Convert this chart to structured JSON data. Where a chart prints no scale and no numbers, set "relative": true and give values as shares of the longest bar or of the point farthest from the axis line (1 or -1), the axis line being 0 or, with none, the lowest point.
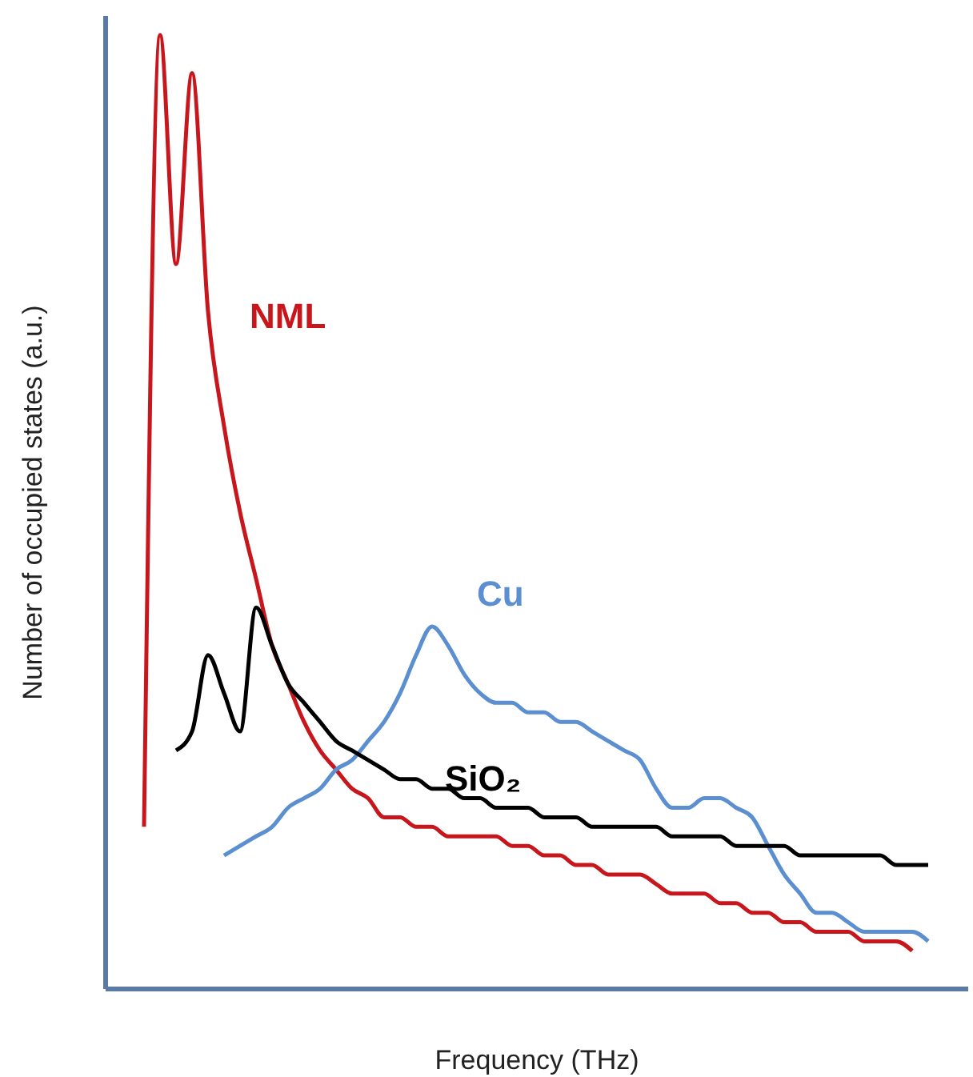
{
  "chart_data": {
    "type": "line",
    "relative": true,
    "xlabel": "Frequency (THz)",
    "ylabel": "Number of occupied states (a.u.)",
    "marker": "none",
    "line_style": "solid",
    "categories": [
      null,
      null,
      null,
      null,
      null,
      null,
      null,
      null,
      null,
      null,
      null,
      null,
      null,
      null,
      null,
      null,
      null,
      null,
      null,
      null,
      null,
      null,
      null,
      null,
      null,
      null,
      null,
      null,
      null,
      null,
      null,
      null,
      null,
      null,
      null,
      null,
      null,
      null,
      null,
      null,
      null,
      null,
      null,
      null,
      null,
      null,
      null,
      null,
      null,
      null,
      null
    ],
    "series": [
      {
        "name": "NML",
        "color": "#c8161d",
        "values": [
          0.17,
          1.0,
          0.76,
          0.96,
          0.71,
          0.59,
          0.5,
          0.43,
          0.36,
          0.32,
          0.28,
          0.25,
          0.23,
          0.21,
          0.2,
          0.18,
          0.18,
          0.17,
          0.17,
          0.16,
          0.16,
          0.16,
          0.16,
          0.15,
          0.15,
          0.14,
          0.14,
          0.13,
          0.13,
          0.12,
          0.12,
          0.12,
          0.11,
          0.1,
          0.1,
          0.1,
          0.09,
          0.09,
          0.08,
          0.08,
          0.07,
          0.07,
          0.06,
          0.06,
          0.06,
          0.05,
          0.05,
          0.05,
          0.04,
          null,
          null
        ]
      },
      {
        "name": "Cu",
        "color": "#5b8fd0",
        "values": [
          null,
          null,
          null,
          null,
          null,
          0.14,
          0.15,
          0.16,
          0.17,
          0.19,
          0.2,
          0.21,
          0.23,
          0.24,
          0.26,
          0.28,
          0.31,
          0.35,
          0.38,
          0.36,
          0.33,
          0.31,
          0.3,
          0.3,
          0.29,
          0.29,
          0.28,
          0.28,
          0.27,
          0.26,
          0.25,
          0.24,
          0.21,
          0.19,
          0.19,
          0.2,
          0.2,
          0.19,
          0.18,
          0.15,
          0.12,
          0.1,
          0.08,
          0.08,
          0.07,
          0.06,
          0.06,
          0.06,
          0.06,
          0.05,
          null
        ]
      },
      {
        "name": "SiO₂",
        "color": "#000000",
        "values": [
          null,
          null,
          0.25,
          0.27,
          0.35,
          0.31,
          0.27,
          0.4,
          0.36,
          0.32,
          0.3,
          0.28,
          0.26,
          0.25,
          0.24,
          0.23,
          0.22,
          0.22,
          0.21,
          0.21,
          0.2,
          0.2,
          0.19,
          0.19,
          0.19,
          0.18,
          0.18,
          0.18,
          0.17,
          0.17,
          0.17,
          0.17,
          0.17,
          0.16,
          0.16,
          0.16,
          0.16,
          0.15,
          0.15,
          0.15,
          0.15,
          0.14,
          0.14,
          0.14,
          0.14,
          0.14,
          0.14,
          0.13,
          0.13,
          0.13,
          null
        ]
      }
    ]
  }
}
